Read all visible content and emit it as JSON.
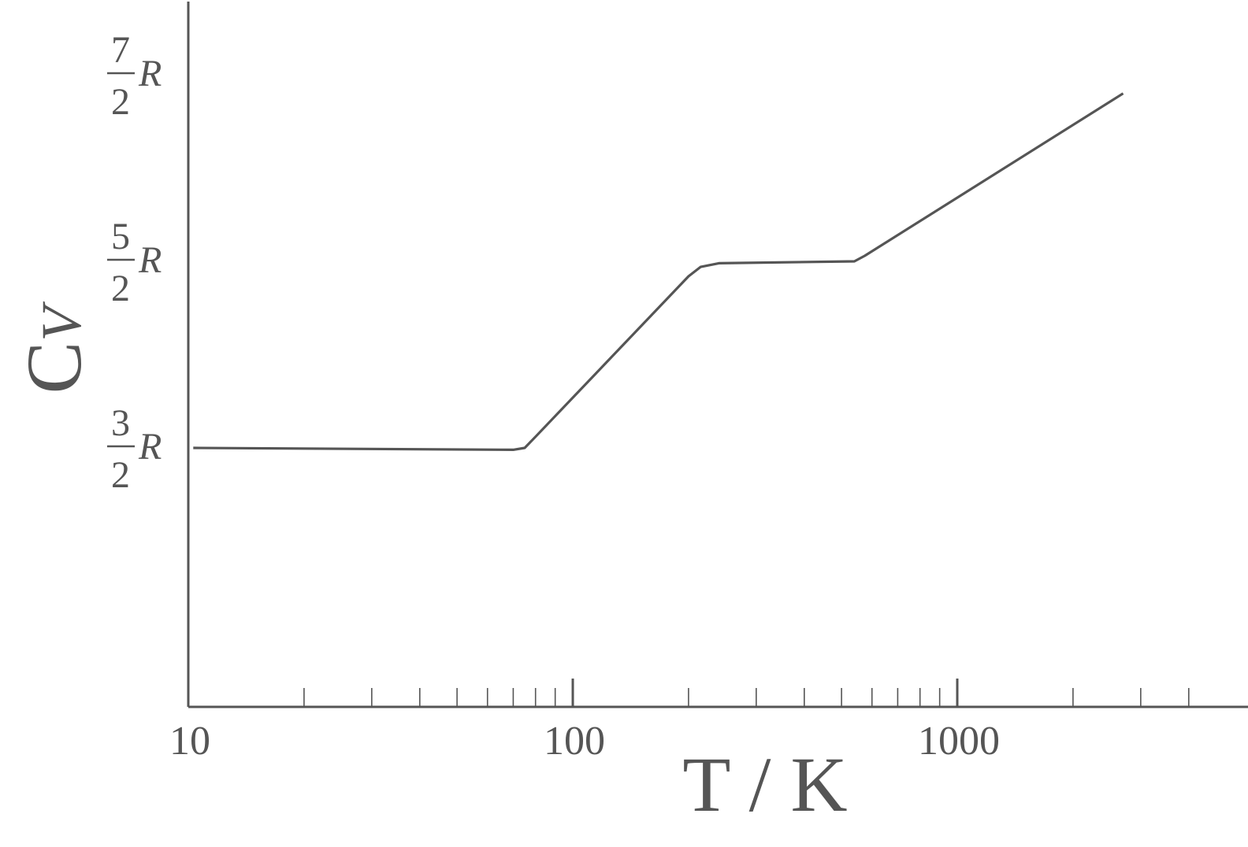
{
  "chart_data": {
    "type": "line",
    "x_scale": "log",
    "xlabel": "T / K",
    "ylabel": {
      "main": "C",
      "sub": "V"
    },
    "xlim": [
      10,
      5000
    ],
    "ylim": [
      0.5,
      3.8
    ],
    "x_tick_labels": [
      {
        "value": 10,
        "label": "10"
      },
      {
        "value": 100,
        "label": "100"
      },
      {
        "value": 1000,
        "label": "1000"
      }
    ],
    "y_tick_labels": [
      {
        "value": 1.5,
        "num": "3",
        "den": "2",
        "sym": "R"
      },
      {
        "value": 2.5,
        "num": "5",
        "den": "2",
        "sym": "R"
      },
      {
        "value": 3.5,
        "num": "7",
        "den": "2",
        "sym": "R"
      }
    ],
    "series": [
      {
        "x": [
          10.3,
          70,
          75,
          80,
          200,
          215,
          240,
          540,
          575,
          2700
        ],
        "y": [
          1.5,
          1.49,
          1.5,
          1.56,
          2.42,
          2.47,
          2.49,
          2.5,
          2.53,
          3.4
        ]
      }
    ],
    "grid": false,
    "legend": "none"
  }
}
